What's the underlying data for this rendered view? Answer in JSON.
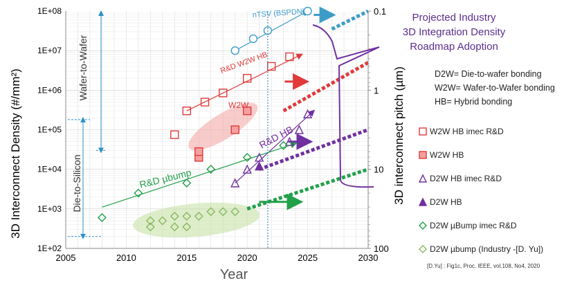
{
  "chart_data": {
    "type": "scatter",
    "xlabel": "Year",
    "ylabel": "3D Interconnect Density (#/mm²)",
    "ylabel_right": "3D interconnect pitch (µm)",
    "xlim": [
      2005,
      2030
    ],
    "ylim": [
      100,
      100000000
    ],
    "yscale": "log",
    "x_ticks": [
      "2005",
      "2010",
      "2015",
      "2020",
      "2025",
      "2030"
    ],
    "y_ticks": [
      "1E+02",
      "1E+03",
      "1E+04",
      "1E+05",
      "1E+06",
      "1E+07",
      "1E+08"
    ],
    "y_right_ticks": [
      "0.1",
      "1",
      "10",
      "100"
    ],
    "grid": true,
    "legend_position": "right",
    "title_block": [
      "Projected Industry",
      "3D Integration Density",
      "Roadmap Adoption"
    ],
    "definitions": [
      "D2W= Die-to-wafer bonding",
      "W2W= Wafer-to-Wafer bonding",
      "HB= Hybrid bonding"
    ],
    "reference_line_x": 2021.7,
    "annotations": {
      "ntsv": "nTSV (BSPDN)",
      "rd_w2w_hb": "R&D W2W HB",
      "w2w": "W2W",
      "rd_hb": "R&D HB",
      "rd_ubump": "R&D µbump",
      "wafer_to_wafer": "Wafer-to-Wafer",
      "die_to_silicon": "Die-to-Silicon",
      "citation": "[D.Yu] : Fig1c, Proc. IEEE, vol.108, No4, 2020"
    },
    "series": [
      {
        "name": "nTSV (BSPDN)",
        "color": "#3c9cc8",
        "marker": "circle-open",
        "points": [
          [
            2019,
            10000000
          ],
          [
            2020.5,
            20000000
          ],
          [
            2021.7,
            32000000
          ],
          [
            2025,
            100000000
          ]
        ]
      },
      {
        "name": "W2W HB imec R&D",
        "color": "#e03a3a",
        "marker": "square-open",
        "points": [
          [
            2014,
            75000
          ],
          [
            2015,
            300000
          ],
          [
            2016.5,
            500000
          ],
          [
            2018,
            850000
          ],
          [
            2020,
            2000000
          ],
          [
            2022,
            4000000
          ],
          [
            2023.5,
            7000000
          ]
        ]
      },
      {
        "name": "W2W HB",
        "color": "#e03a3a",
        "marker": "square-filled",
        "points": [
          [
            2016,
            20000
          ],
          [
            2016,
            28000
          ],
          [
            2019,
            100000
          ],
          [
            2020,
            300000
          ]
        ]
      },
      {
        "name": "D2W HB imec R&D",
        "color": "#7030a0",
        "marker": "triangle-open",
        "points": [
          [
            2019,
            4500
          ],
          [
            2020,
            10000
          ],
          [
            2021,
            20000
          ],
          [
            2023.5,
            50000
          ],
          [
            2024.3,
            100000
          ],
          [
            2025,
            250000
          ]
        ]
      },
      {
        "name": "D2W HB",
        "color": "#7030a0",
        "marker": "triangle-filled",
        "points": [
          [
            2021,
            12000
          ]
        ]
      },
      {
        "name": "D2W µBump imec R&D",
        "color": "#22a04a",
        "marker": "diamond-open",
        "points": [
          [
            2008,
            600
          ],
          [
            2011,
            2500
          ],
          [
            2015,
            4500
          ],
          [
            2017,
            10000
          ],
          [
            2020,
            20000
          ],
          [
            2023,
            40000
          ]
        ]
      },
      {
        "name": "D2W µbump (Industry -[D. Yu])",
        "color": "#8ab860",
        "marker": "diamond-open",
        "points": [
          [
            2012,
            500
          ],
          [
            2013,
            500
          ],
          [
            2014,
            650
          ],
          [
            2015,
            650
          ],
          [
            2016,
            650
          ],
          [
            2017,
            850
          ],
          [
            2018,
            850
          ],
          [
            2019,
            850
          ],
          [
            2012,
            350
          ],
          [
            2014,
            350
          ],
          [
            2015,
            350
          ]
        ]
      }
    ],
    "trend_lines": [
      {
        "name": "nTSV",
        "color": "#3c9cc8",
        "from": [
          2019,
          10000000
        ],
        "to": [
          2025,
          100000000
        ]
      },
      {
        "name": "R&D W2W HB",
        "color": "#e03a3a",
        "from": [
          2015,
          300000
        ],
        "to": [
          2024.5,
          8000000
        ]
      },
      {
        "name": "R&D HB",
        "color": "#7030a0",
        "from": [
          2019,
          4500
        ],
        "to": [
          2025.5,
          300000
        ]
      },
      {
        "name": "R&D µbump",
        "color": "#22a04a",
        "from": [
          2008,
          1100
        ],
        "to": [
          2024,
          45000
        ]
      }
    ],
    "projections": [
      {
        "color": "#3c9cc8",
        "from": [
          2027,
          35000000
        ],
        "to": [
          2030,
          100000000
        ]
      },
      {
        "color": "#e03a3a",
        "from": [
          2023,
          300000
        ],
        "to": [
          2030,
          5000000
        ]
      },
      {
        "color": "#7030a0",
        "from": [
          2021,
          10000
        ],
        "to": [
          2030,
          100000
        ]
      },
      {
        "color": "#22a04a",
        "from": [
          2020,
          1000
        ],
        "to": [
          2030,
          10000
        ]
      }
    ],
    "projection_arrows": [
      {
        "color": "#3c9cc8",
        "from": [
          2025.5,
          80000000
        ],
        "to": [
          2027,
          80000000
        ]
      },
      {
        "color": "#e03a3a",
        "from": [
          2023.1,
          1650000
        ],
        "to": [
          2024.8,
          1650000
        ]
      },
      {
        "color": "#7030a0",
        "from": [
          2023.4,
          50000
        ],
        "to": [
          2025.1,
          50000
        ]
      },
      {
        "color": "#22a04a",
        "from": [
          2021,
          1500
        ],
        "to": [
          2024.3,
          1500
        ]
      }
    ],
    "regions": [
      {
        "color": "#e03a3a",
        "center": [
          2018,
          100000
        ],
        "label": "W2W"
      },
      {
        "color": "#22a04a",
        "center": [
          2015.5,
          500
        ],
        "label": "D2W industry"
      }
    ]
  }
}
